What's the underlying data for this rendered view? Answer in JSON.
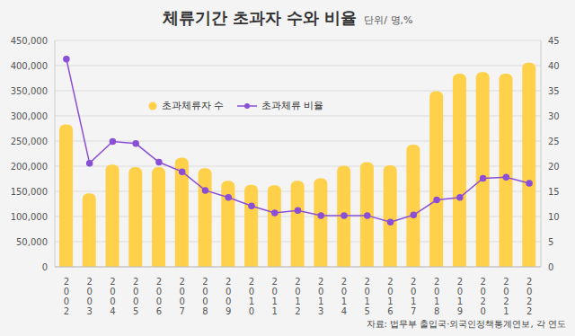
{
  "chart_data": {
    "type": "bar",
    "title": "체류기간 초과자 수와 비율",
    "subtitle": "단위/ 명,%",
    "source": "자료: 법무부 출입국·외국인정책통계연보, 각 연도",
    "categories": [
      "2002",
      "2003",
      "2004",
      "2005",
      "2006",
      "2007",
      "2008",
      "2009",
      "2010",
      "2011",
      "2012",
      "2013",
      "2014",
      "2015",
      "2016",
      "2017",
      "2018",
      "2019",
      "2020",
      "2021",
      "2022"
    ],
    "series": [
      {
        "name": "초과체류자 수",
        "type": "bar",
        "color": "#FFD04A",
        "values": [
          283000,
          146000,
          203000,
          198000,
          198000,
          217000,
          196000,
          171000,
          163000,
          162000,
          171000,
          176000,
          201000,
          208000,
          202000,
          243000,
          349000,
          384000,
          387000,
          384000,
          406000
        ]
      },
      {
        "name": "초과체류 비율",
        "type": "line",
        "axis": "y2",
        "color": "#8A4FD6",
        "marker": "circle",
        "values": [
          41.3,
          20.6,
          24.9,
          24.5,
          20.8,
          18.9,
          15.2,
          13.8,
          12.1,
          10.7,
          11.2,
          10.2,
          10.2,
          10.2,
          8.9,
          10.3,
          13.3,
          13.8,
          17.6,
          17.8,
          16.6
        ]
      }
    ],
    "ylim": [
      0,
      450000
    ],
    "yticks": [
      0,
      {
        "value": 50000,
        "label": "50,000"
      },
      {
        "value": 100000,
        "label": "100,000"
      },
      {
        "value": 150000,
        "label": "150,000"
      },
      {
        "value": 200000,
        "label": "200,000"
      },
      {
        "value": 250000,
        "label": "250,000"
      },
      {
        "value": 300000,
        "label": "300,000"
      },
      {
        "value": 350000,
        "label": "350,000"
      },
      {
        "value": 400000,
        "label": "400,000"
      },
      {
        "value": 450000,
        "label": "450,000"
      }
    ],
    "y2lim": [
      0,
      45
    ],
    "y2ticks": [
      0,
      5,
      10,
      15,
      20,
      25,
      30,
      35,
      40,
      45
    ],
    "grid": true,
    "legend": "top"
  }
}
